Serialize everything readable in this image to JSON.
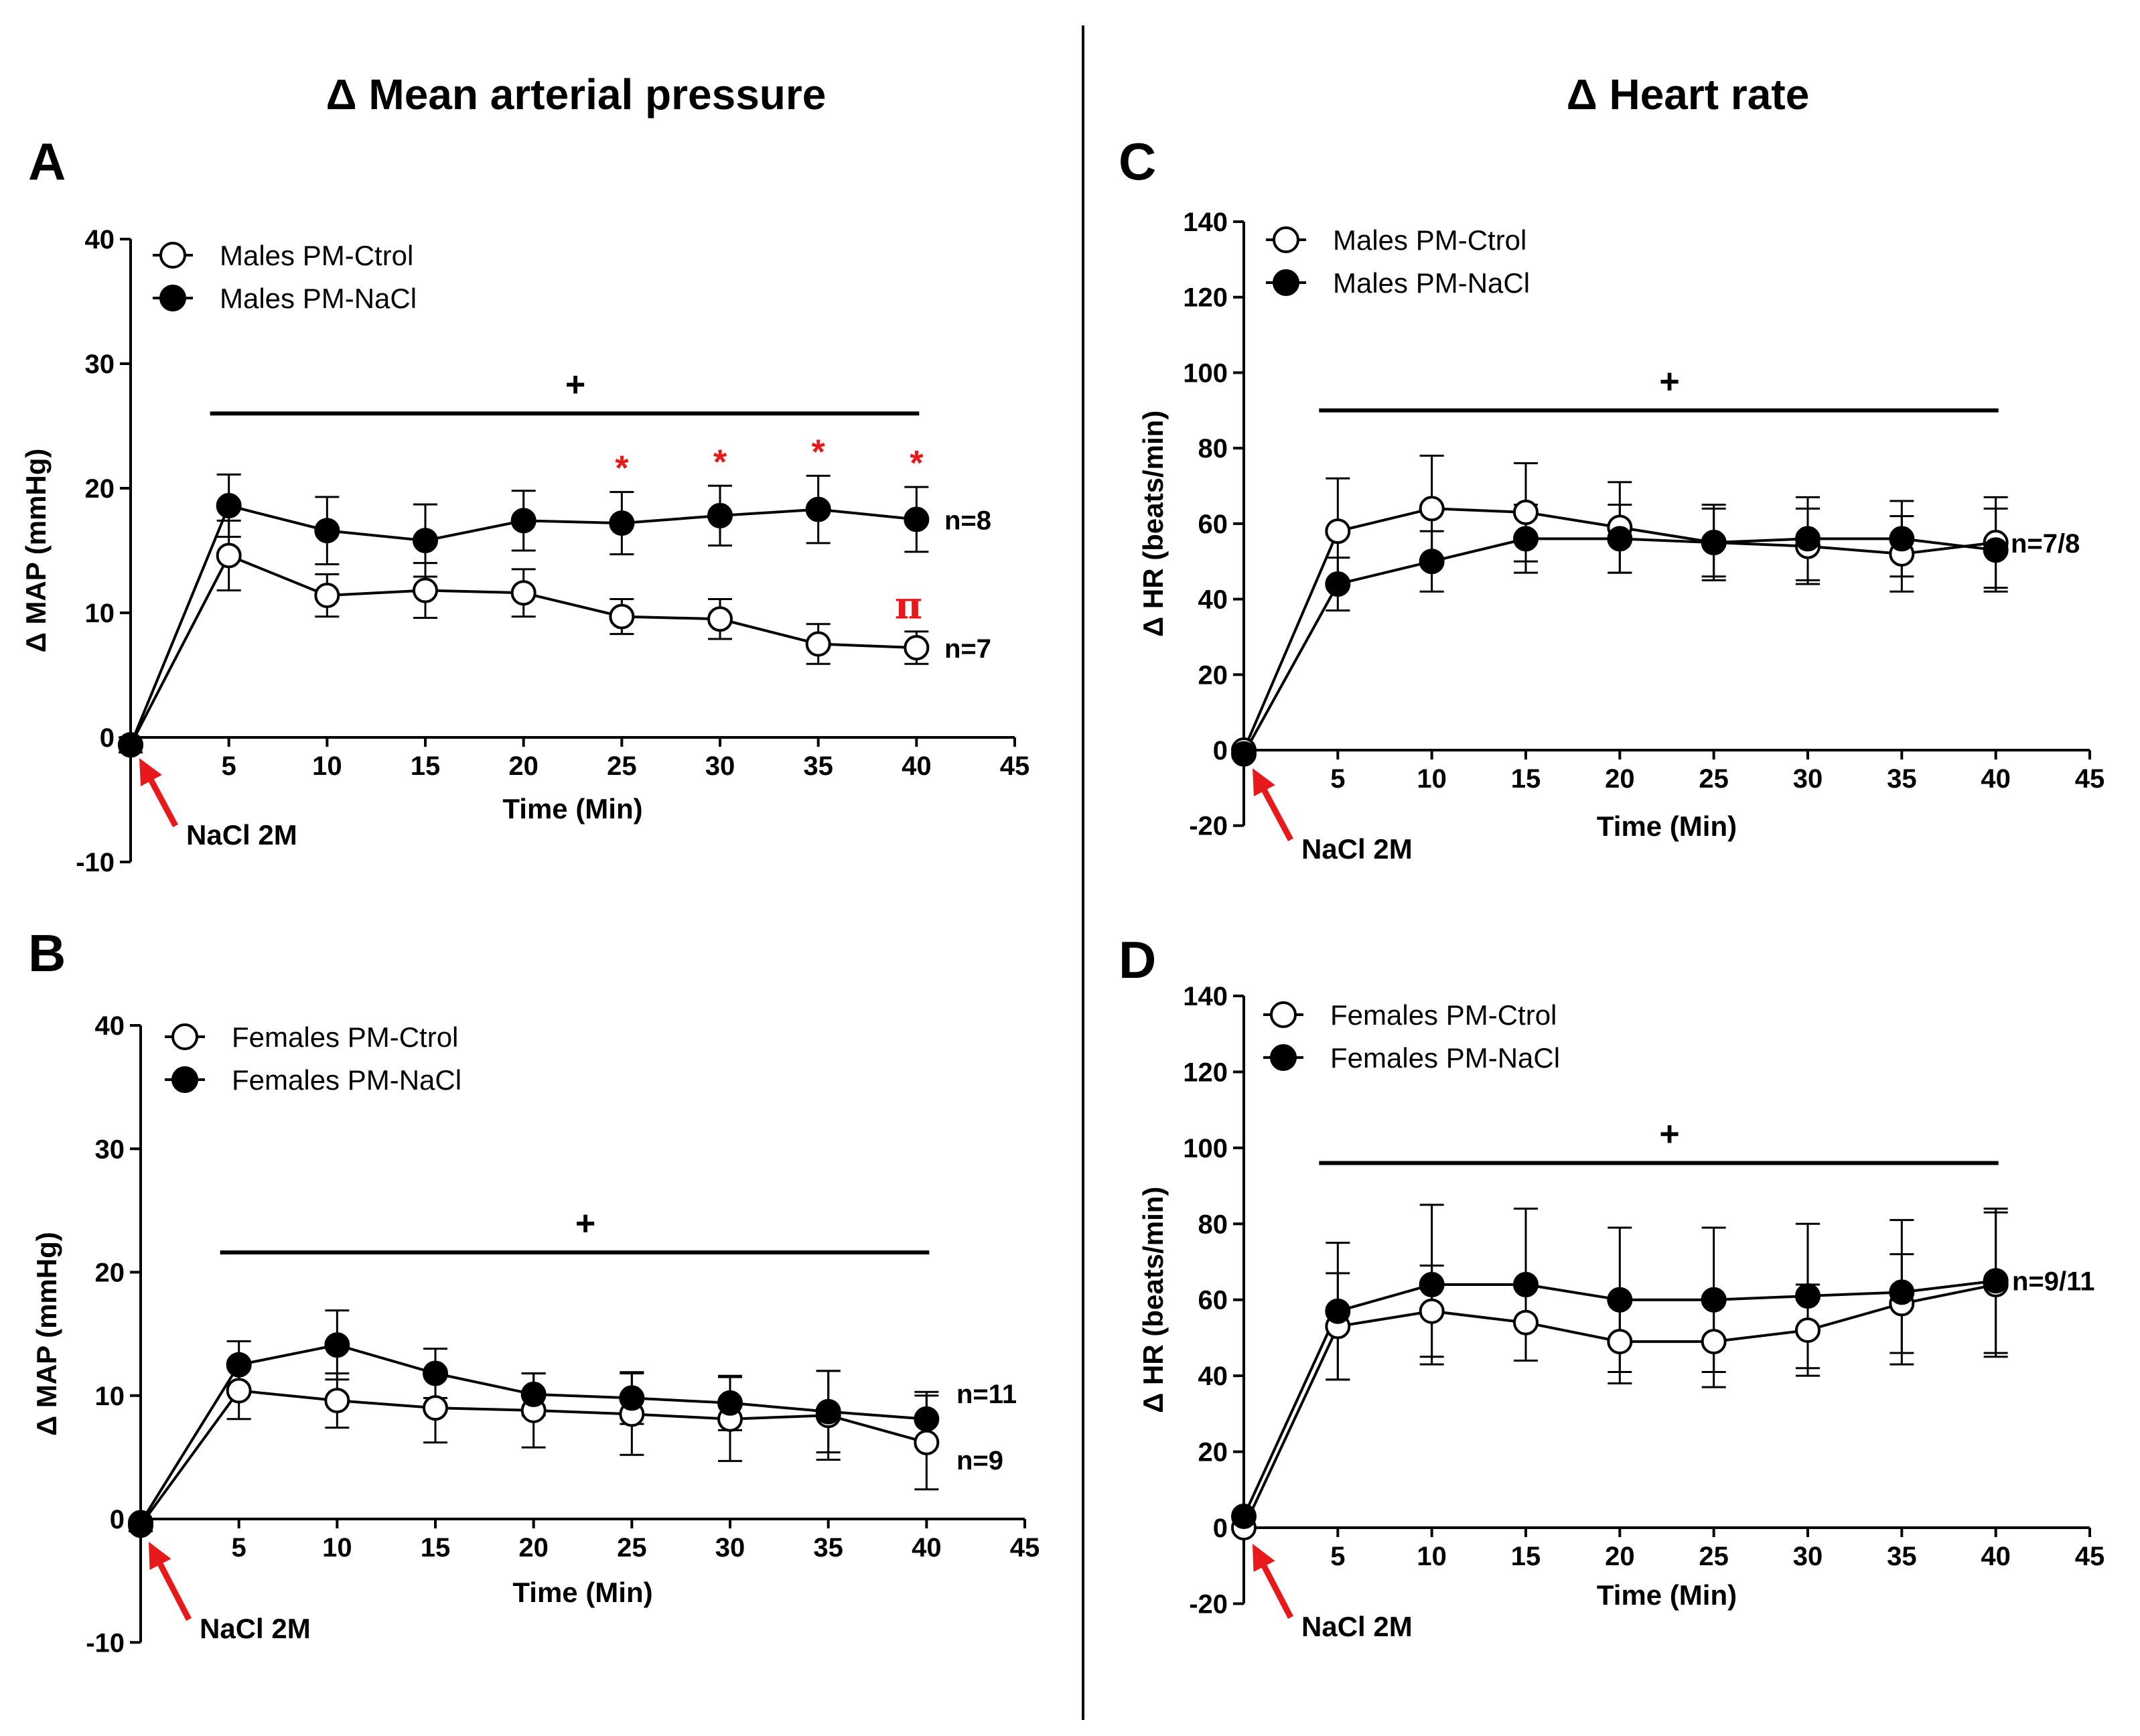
{
  "headers": {
    "map": "Δ Mean arterial pressure",
    "hr": "Δ Heart rate"
  },
  "colors": {
    "series_line": "#000000",
    "accent_red": "#e8191b",
    "marker_fill_open": "#ffffff"
  },
  "chart_data": [
    {
      "id": "A",
      "panel_label": "A",
      "type": "line",
      "title": "Δ Mean arterial pressure",
      "xlabel": "Time (Min)",
      "ylabel": "Δ MAP (mmHg)",
      "xlim": [
        0,
        45
      ],
      "ylim": [
        -10,
        40
      ],
      "xticks": [
        5,
        10,
        15,
        20,
        25,
        30,
        35,
        40,
        45
      ],
      "yticks": [
        -10,
        0,
        10,
        20,
        30,
        40
      ],
      "x": [
        0,
        5,
        10,
        15,
        20,
        25,
        30,
        35,
        40
      ],
      "series": [
        {
          "name": "Males PM-Ctrol",
          "marker": "open",
          "values": [
            -0.6,
            14.6,
            11.4,
            11.8,
            11.6,
            9.7,
            9.5,
            7.5,
            7.2
          ],
          "errors": [
            0.6,
            2.8,
            1.7,
            2.2,
            1.9,
            1.4,
            1.6,
            1.6,
            1.3
          ]
        },
        {
          "name": "Males PM-NaCl",
          "marker": "filled",
          "values": [
            -0.6,
            18.6,
            16.6,
            15.8,
            17.4,
            17.2,
            17.8,
            18.3,
            17.5
          ],
          "errors": [
            0.6,
            2.5,
            2.7,
            2.9,
            2.4,
            2.5,
            2.4,
            2.7,
            2.6
          ]
        }
      ],
      "n_labels": [
        {
          "text": "n=8",
          "series": 1
        },
        {
          "text": "n=7",
          "series": 0
        }
      ],
      "significance_bar": {
        "from": 5,
        "to": 40,
        "y": 26.0,
        "symbol": "+"
      },
      "stars": {
        "symbol": "*",
        "x": [
          25,
          30,
          35,
          40
        ]
      },
      "pi": {
        "symbol": "π",
        "x": 40,
        "y": 10.5
      },
      "arrow_label": "NaCl 2M"
    },
    {
      "id": "B",
      "panel_label": "B",
      "type": "line",
      "xlabel": "Time (Min)",
      "ylabel": "Δ MAP (mmHg)",
      "xlim": [
        0,
        45
      ],
      "ylim": [
        -10,
        40
      ],
      "xticks": [
        5,
        10,
        15,
        20,
        25,
        30,
        35,
        40,
        45
      ],
      "yticks": [
        -10,
        0,
        10,
        20,
        30,
        40
      ],
      "x": [
        0,
        5,
        10,
        15,
        20,
        25,
        30,
        35,
        40
      ],
      "series": [
        {
          "name": "Females PM-Ctrol",
          "marker": "open",
          "values": [
            -0.5,
            10.4,
            9.6,
            9.0,
            8.8,
            8.5,
            8.1,
            8.4,
            6.2
          ],
          "errors": [
            0.5,
            2.3,
            2.2,
            2.8,
            3.0,
            3.3,
            3.4,
            3.6,
            3.8
          ]
        },
        {
          "name": "Females PM-NaCl",
          "marker": "filled",
          "values": [
            -0.3,
            12.5,
            14.1,
            11.8,
            10.1,
            9.8,
            9.4,
            8.7,
            8.1
          ],
          "errors": [
            0.3,
            1.9,
            2.8,
            2.0,
            1.7,
            2.1,
            2.2,
            3.3,
            2.2
          ]
        }
      ],
      "n_labels": [
        {
          "text": "n=11",
          "series": 1
        },
        {
          "text": "n=9",
          "series": 0
        }
      ],
      "significance_bar": {
        "from": 5,
        "to": 40,
        "y": 21.6,
        "symbol": "+"
      },
      "arrow_label": "NaCl 2M"
    },
    {
      "id": "C",
      "panel_label": "C",
      "type": "line",
      "title": "Δ Heart rate",
      "xlabel": "Time (Min)",
      "ylabel": "Δ HR (beats/min)",
      "xlim": [
        0,
        45
      ],
      "ylim": [
        -20,
        140
      ],
      "xticks": [
        5,
        10,
        15,
        20,
        25,
        30,
        35,
        40,
        45
      ],
      "yticks": [
        -20,
        0,
        20,
        40,
        60,
        80,
        100,
        120,
        140
      ],
      "x": [
        0,
        5,
        10,
        15,
        20,
        25,
        30,
        35,
        40
      ],
      "series": [
        {
          "name": "Males PM-Ctrol",
          "marker": "open",
          "values": [
            0,
            58,
            64,
            63,
            59,
            55,
            54,
            52,
            55
          ],
          "errors": [
            0,
            14,
            14,
            13,
            12,
            10,
            10,
            10,
            12
          ]
        },
        {
          "name": "Males PM-NaCl",
          "marker": "filled",
          "values": [
            -1,
            44,
            50,
            56,
            56,
            55,
            56,
            56,
            53
          ],
          "errors": [
            1,
            7,
            8,
            9,
            9,
            9,
            11,
            10,
            11
          ]
        }
      ],
      "n_labels": [
        {
          "text": "n=7/8",
          "series": 0
        }
      ],
      "significance_bar": {
        "from": 5,
        "to": 40,
        "y": 90,
        "symbol": "+"
      },
      "arrow_label": "NaCl 2M"
    },
    {
      "id": "D",
      "panel_label": "D",
      "type": "line",
      "xlabel": "Time (Min)",
      "ylabel": "Δ HR (beats/min)",
      "xlim": [
        0,
        45
      ],
      "ylim": [
        -20,
        140
      ],
      "xticks": [
        5,
        10,
        15,
        20,
        25,
        30,
        35,
        40,
        45
      ],
      "yticks": [
        -20,
        0,
        20,
        40,
        60,
        80,
        100,
        120,
        140
      ],
      "x": [
        0,
        5,
        10,
        15,
        20,
        25,
        30,
        35,
        40
      ],
      "series": [
        {
          "name": "Females PM-Ctrol",
          "marker": "open",
          "values": [
            0,
            53,
            57,
            54,
            49,
            49,
            52,
            59,
            64
          ],
          "errors": [
            0,
            14,
            12,
            10,
            11,
            12,
            12,
            13,
            19
          ]
        },
        {
          "name": "Females PM-NaCl",
          "marker": "filled",
          "values": [
            3,
            57,
            64,
            64,
            60,
            60,
            61,
            62,
            65
          ],
          "errors": [
            0,
            18,
            21,
            20,
            19,
            19,
            19,
            19,
            19
          ]
        }
      ],
      "n_labels": [
        {
          "text": "n=9/11",
          "series": 1
        }
      ],
      "significance_bar": {
        "from": 5,
        "to": 40,
        "y": 96,
        "symbol": "+"
      },
      "arrow_label": "NaCl 2M"
    }
  ]
}
